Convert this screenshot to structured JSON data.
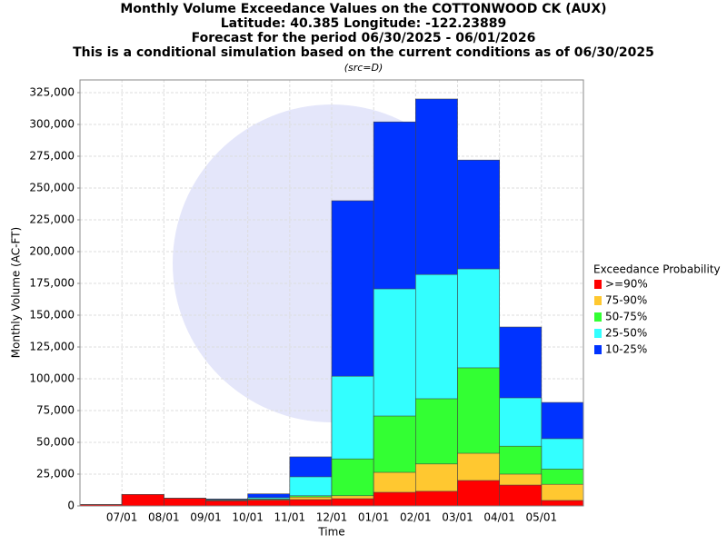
{
  "chart_data": {
    "type": "bar",
    "title": [
      "Monthly Volume Exceedance Values on the COTTONWOOD CK (AUX)",
      "Latitude: 40.385 Longitude: -122.23889",
      "Forecast for the period 06/30/2025 - 06/01/2026",
      "This is a conditional simulation based on the current conditions as of 06/30/2025"
    ],
    "subtitle": "(src=D)",
    "x_label": "Time",
    "y_label": "Monthly Volume (AC-FT)",
    "legend_title": "Exceedance Probability",
    "legend": "right",
    "grid": true,
    "categories": [
      null,
      "07/01",
      "08/01",
      "09/01",
      "10/01",
      "11/01",
      "12/01",
      "01/01",
      "02/01",
      "03/01",
      "04/01",
      "05/01"
    ],
    "series": [
      {
        "name": ">=90%",
        "color": "#ff0000",
        "values": [
          1000,
          9000,
          6000,
          4000,
          4500,
          5000,
          5700,
          10700,
          11500,
          20000,
          16400,
          4300
        ]
      },
      {
        "name": "75-90%",
        "color": "#ffc830",
        "values": [
          1000,
          9000,
          6000,
          4200,
          5000,
          7000,
          8000,
          26400,
          33000,
          41400,
          25000,
          17000
        ]
      },
      {
        "name": "50-75%",
        "color": "#33ff33",
        "values": [
          1000,
          9000,
          6000,
          4500,
          5500,
          8000,
          37000,
          70700,
          84300,
          108600,
          47000,
          29000
        ]
      },
      {
        "name": "25-50%",
        "color": "#33ffff",
        "values": [
          1000,
          9000,
          6000,
          5000,
          6500,
          22900,
          102000,
          170700,
          182000,
          186400,
          85000,
          52900
        ]
      },
      {
        "name": "10-25%",
        "color": "#0033ff",
        "values": [
          1000,
          9000,
          6000,
          5500,
          9500,
          38600,
          240000,
          302000,
          320000,
          272000,
          140700,
          81400
        ]
      }
    ],
    "ylim": [
      0,
      335000
    ],
    "yticks": [
      0,
      {
        "value": 25000,
        "label": "25,000"
      },
      {
        "value": 50000,
        "label": "50,000"
      },
      {
        "value": 75000,
        "label": "75,000"
      },
      {
        "value": 100000,
        "label": "100,000"
      },
      {
        "value": 125000,
        "label": "125,000"
      },
      {
        "value": 150000,
        "label": "150,000"
      },
      {
        "value": 175000,
        "label": "175,000"
      },
      {
        "value": 200000,
        "label": "200,000"
      },
      {
        "value": 225000,
        "label": "225,000"
      },
      {
        "value": 250000,
        "label": "250,000"
      },
      {
        "value": 275000,
        "label": "275,000"
      },
      {
        "value": 300000,
        "label": "300,000"
      },
      {
        "value": 325000,
        "label": "325,000"
      }
    ]
  }
}
